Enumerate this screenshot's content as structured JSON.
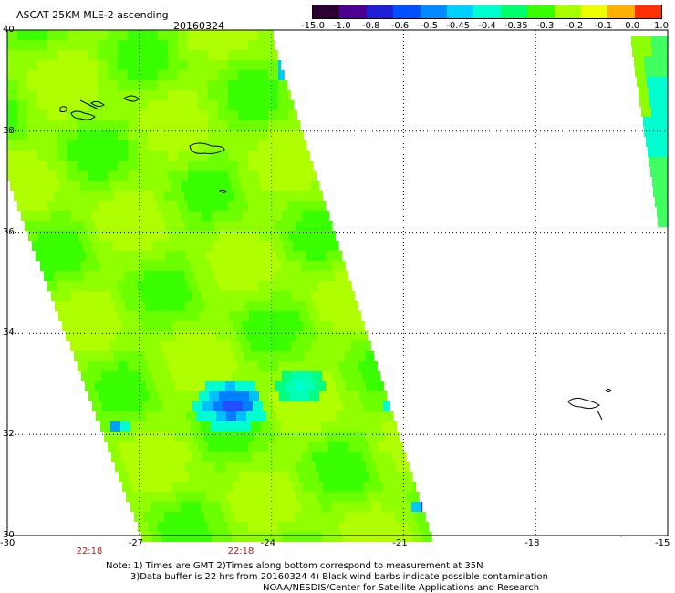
{
  "header": {
    "product": "ASCAT 25KM MLE-2 ascending",
    "date": "20160324"
  },
  "colorbar": {
    "labels": [
      "-15.0",
      "-1.0",
      "-0.8",
      "-0.6",
      "-0.5",
      "-0.45",
      "-0.4",
      "-0.35",
      "-0.3",
      "-0.2",
      "-0.1",
      "0.0",
      "1.0"
    ],
    "colors": [
      "#2a0033",
      "#4b0090",
      "#1f1fd6",
      "#0050ff",
      "#008cff",
      "#00d0ff",
      "#00ffd0",
      "#00ff6a",
      "#3aff00",
      "#a8ff00",
      "#f0ff00",
      "#ffb000",
      "#ff3000"
    ]
  },
  "map": {
    "lat_labels": [
      "40",
      "38",
      "36",
      "34",
      "32",
      "30"
    ],
    "lon_labels": [
      "-30",
      "-27",
      "-24",
      "-21",
      "-18",
      "-15"
    ],
    "lat_range": [
      30,
      40
    ],
    "lon_range": [
      -30,
      -15
    ]
  },
  "times": [
    "22:18",
    "22:18"
  ],
  "notes": [
    "Note: 1) Times are GMT 2)Times along bottom correspond to measurement at 35N",
    "3)Data buffer is 22 hrs from 20160324 4) Black wind barbs indicate possible contamination",
    "NOAA/NESDIS/Center for Satellite Applications and Research"
  ]
}
